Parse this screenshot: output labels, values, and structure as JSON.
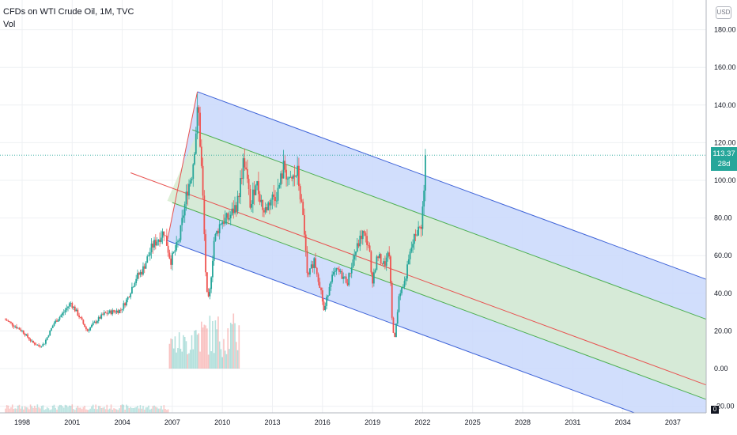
{
  "header": {
    "title": "CFDs on WTI Crude Oil, 1M, TVC",
    "volume_label": "Vol",
    "currency_button": "USD"
  },
  "last_price": {
    "value": "113.37",
    "countdown": "28d 21h"
  },
  "colors": {
    "up": "#26a69a",
    "down": "#ef5350",
    "channel_outer_fill": "#c9d8fb",
    "channel_outer_line": "#3f64d8",
    "channel_inner_fill": "#d7ecd0",
    "channel_inner_line": "#4caf50",
    "median_line": "#e8514f",
    "grid": "#eef0f3",
    "price_line": "#26a69a"
  },
  "chart_data": {
    "type": "candlestick",
    "title": "CFDs on WTI Crude Oil, 1M, TVC",
    "x_axis": {
      "ticks": [
        "1998",
        "2001",
        "2004",
        "2007",
        "2010",
        "2013",
        "2016",
        "2019",
        "2022",
        "2025",
        "2028",
        "2031",
        "2034",
        "2037"
      ],
      "range": [
        1997,
        2040
      ]
    },
    "y_axis": {
      "ticks": [
        "180.00",
        "160.00",
        "140.00",
        "120.00",
        "100.00",
        "80.00",
        "60.00",
        "40.00",
        "20.00",
        "0.00",
        "-20.00"
      ],
      "range": [
        -25,
        185
      ],
      "position": "right"
    },
    "last_price": 113.37,
    "pitchfork": {
      "pivots": [
        {
          "time": 2006.7,
          "price": 46
        },
        {
          "time": 2008.5,
          "price": 147
        },
        {
          "time": 2010.0,
          "price": 30
        }
      ],
      "median_start": {
        "time": 2004.5,
        "price": 104
      },
      "median_end": {
        "time": 2040,
        "price": -12
      },
      "median_anchor": {
        "time": 2012.5,
        "price": 91.5
      },
      "channel_offsets": [
        -42.5,
        -21.3,
        21.3,
        42.5
      ]
    },
    "close_path": [
      [
        1997.0,
        26
      ],
      [
        1998.0,
        20
      ],
      [
        1998.6,
        14
      ],
      [
        1999.0,
        12
      ],
      [
        1999.3,
        13
      ],
      [
        1999.9,
        24
      ],
      [
        2000.5,
        30
      ],
      [
        2000.9,
        35
      ],
      [
        2001.4,
        28
      ],
      [
        2001.9,
        20
      ],
      [
        2002.3,
        24
      ],
      [
        2002.9,
        29
      ],
      [
        2003.3,
        30
      ],
      [
        2003.9,
        31
      ],
      [
        2004.3,
        37
      ],
      [
        2004.8,
        48
      ],
      [
        2005.2,
        52
      ],
      [
        2005.8,
        65
      ],
      [
        2006.5,
        73
      ],
      [
        2006.9,
        57
      ],
      [
        2007.4,
        68
      ],
      [
        2007.9,
        95
      ],
      [
        2008.2,
        105
      ],
      [
        2008.55,
        140
      ],
      [
        2008.8,
        98
      ],
      [
        2009.05,
        40
      ],
      [
        2009.2,
        36
      ],
      [
        2009.5,
        68
      ],
      [
        2009.9,
        78
      ],
      [
        2010.4,
        80
      ],
      [
        2010.9,
        88
      ],
      [
        2011.3,
        112
      ],
      [
        2011.7,
        85
      ],
      [
        2012.0,
        100
      ],
      [
        2012.5,
        83
      ],
      [
        2012.9,
        90
      ],
      [
        2013.3,
        93
      ],
      [
        2013.7,
        108
      ],
      [
        2014.0,
        98
      ],
      [
        2014.5,
        104
      ],
      [
        2014.9,
        75
      ],
      [
        2015.1,
        47
      ],
      [
        2015.5,
        58
      ],
      [
        2015.9,
        42
      ],
      [
        2016.1,
        30
      ],
      [
        2016.5,
        48
      ],
      [
        2016.9,
        52
      ],
      [
        2017.5,
        46
      ],
      [
        2017.9,
        60
      ],
      [
        2018.4,
        72
      ],
      [
        2018.8,
        65
      ],
      [
        2018.95,
        45
      ],
      [
        2019.3,
        60
      ],
      [
        2019.7,
        55
      ],
      [
        2020.0,
        61
      ],
      [
        2020.2,
        20
      ],
      [
        2020.35,
        17
      ],
      [
        2020.6,
        40
      ],
      [
        2020.9,
        45
      ],
      [
        2021.3,
        63
      ],
      [
        2021.6,
        72
      ],
      [
        2021.9,
        75
      ],
      [
        2022.1,
        95
      ],
      [
        2022.2,
        113.37
      ]
    ],
    "volume": {
      "visible_from": 2006.8,
      "visible_to": 2011.0,
      "max_value_axis": 30
    }
  }
}
